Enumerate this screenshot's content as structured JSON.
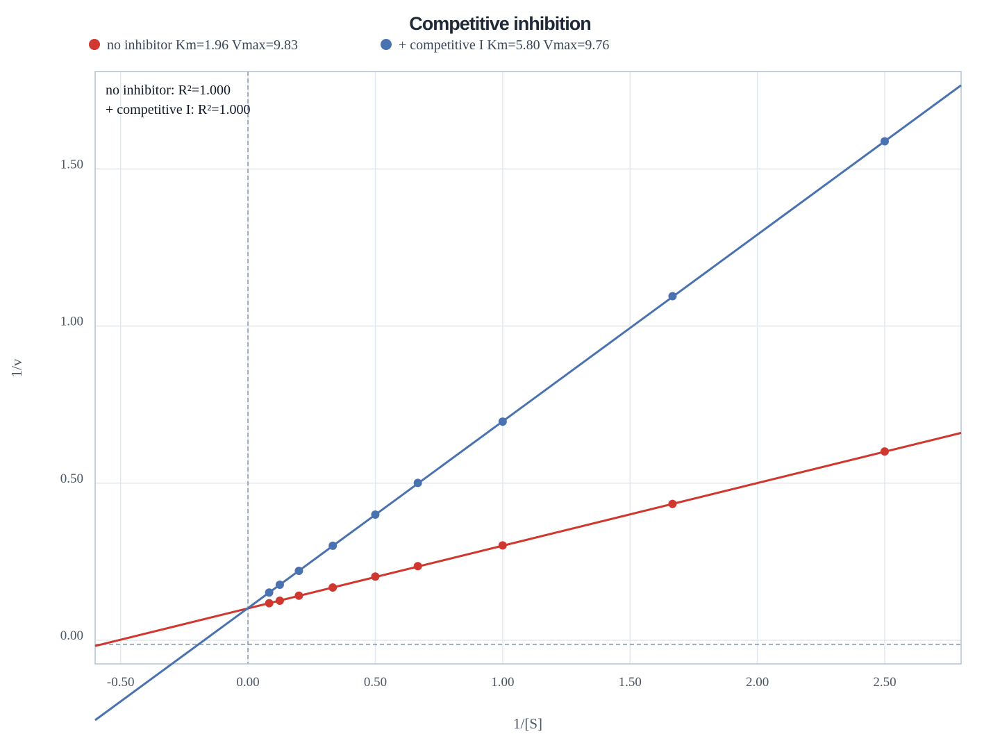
{
  "chart_data": {
    "type": "scatter",
    "title": "Competitive inhibition",
    "xlabel": "1/[S]",
    "ylabel": "1/v",
    "xlim": [
      -0.6,
      2.8
    ],
    "ylim": [
      -0.075,
      1.81
    ],
    "xticks": [
      -0.5,
      0.0,
      0.5,
      1.0,
      1.5,
      2.0,
      2.5
    ],
    "xtick_labels": [
      "-0.50",
      "0.00",
      "0.50",
      "1.00",
      "1.50",
      "2.00",
      "2.50"
    ],
    "yticks": [
      0.0,
      0.5,
      1.0,
      1.5
    ],
    "ytick_labels": [
      "0.00",
      "0.50",
      "1.00",
      "1.50"
    ],
    "grid": true,
    "legend_position": "top",
    "reference_lines": [
      {
        "axis": "x",
        "value": 0
      },
      {
        "axis": "y",
        "value": -0.013
      }
    ],
    "series": [
      {
        "name": "no inhibitor Km=1.96 Vmax=9.83",
        "color": "#d0382f",
        "x": [
          0.0833,
          0.125,
          0.2,
          0.333,
          0.5,
          0.667,
          1.0,
          1.667,
          2.5
        ],
        "y": [
          0.118,
          0.126,
          0.142,
          0.168,
          0.203,
          0.236,
          0.302,
          0.434,
          0.601
        ],
        "fit": {
          "slope": 0.1994,
          "intercept": 0.1017
        }
      },
      {
        "name": "+ competitive I Km=5.80 Vmax=9.76",
        "color": "#4a72b0",
        "x": [
          0.0833,
          0.125,
          0.2,
          0.333,
          0.5,
          0.667,
          1.0,
          1.667,
          2.5
        ],
        "y": [
          0.152,
          0.177,
          0.221,
          0.301,
          0.4,
          0.501,
          0.696,
          1.095,
          1.588
        ],
        "fit": {
          "slope": 0.5942,
          "intercept": 0.1025
        }
      }
    ],
    "annotations": [
      "no inhibitor: R²=1.000",
      "+ competitive I: R²=1.000"
    ]
  }
}
